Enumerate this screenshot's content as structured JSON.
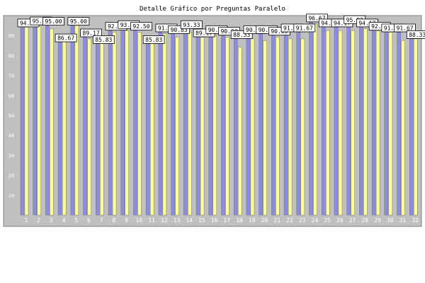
{
  "chart_data": {
    "type": "bar",
    "title": "Detalle Gráfico por Preguntas Paralelo",
    "ylim": [
      0,
      100
    ],
    "yticks": [
      10,
      20,
      30,
      40,
      50,
      60,
      70,
      80,
      90
    ],
    "grid": false,
    "categories": [
      "1",
      "2",
      "3",
      "4",
      "5",
      "6",
      "7",
      "8",
      "9",
      "10",
      "11",
      "12",
      "13",
      "14",
      "15",
      "16",
      "17",
      "18",
      "19",
      "20",
      "21",
      "22",
      "23",
      "24",
      "25",
      "26",
      "27",
      "28",
      "29",
      "30",
      "31",
      "32"
    ],
    "series": [
      {
        "values": [
          94.17,
          95.17,
          95.0,
          86.67,
          95.0,
          89.17,
          85.83,
          92.5,
          93.33,
          92.5,
          85.83,
          91.67,
          90.83,
          93.33,
          89.17,
          90.83,
          90.0,
          88.33,
          90.83,
          90.83,
          90.0,
          91.67,
          91.67,
          96.67,
          94.17,
          94.17,
          95.83,
          94.17,
          92.5,
          91.67,
          91.67,
          88.33
        ]
      },
      {
        "values": [
          94.17,
          95.0,
          93.33,
          87.5,
          95.0,
          88.33,
          87.5,
          91.67,
          92.5,
          91.67,
          90.0,
          90.83,
          89.17,
          91.67,
          89.17,
          90.0,
          89.17,
          84.17,
          88.33,
          87.5,
          89.17,
          88.33,
          88.33,
          95.83,
          92.5,
          92.5,
          92.5,
          93.33,
          92.24,
          91.67,
          87.5,
          88.33
        ]
      }
    ],
    "series_colors": [
      "#8c8ce6",
      "#ffff99"
    ],
    "labels": [
      "94.17",
      "95.17",
      "95.00",
      "86.67",
      "95.00",
      "89.17",
      "85.83",
      "92.50",
      "93.33",
      "92.50",
      "85.83",
      "91.67",
      "90.83",
      "93.33",
      "89.17",
      "90.83",
      "90.00",
      "88.33",
      "90.83",
      "90.83",
      "90.00",
      "91.67",
      "91.67",
      "96.67",
      "94.17",
      "94.17",
      "95.83",
      "94.17",
      "92.50",
      "91.67",
      "91.67",
      "88.33"
    ],
    "colors": {
      "plot_background": "#c0c0c0",
      "axis_text": "#ffffff",
      "label_box": "#ffffff"
    }
  }
}
